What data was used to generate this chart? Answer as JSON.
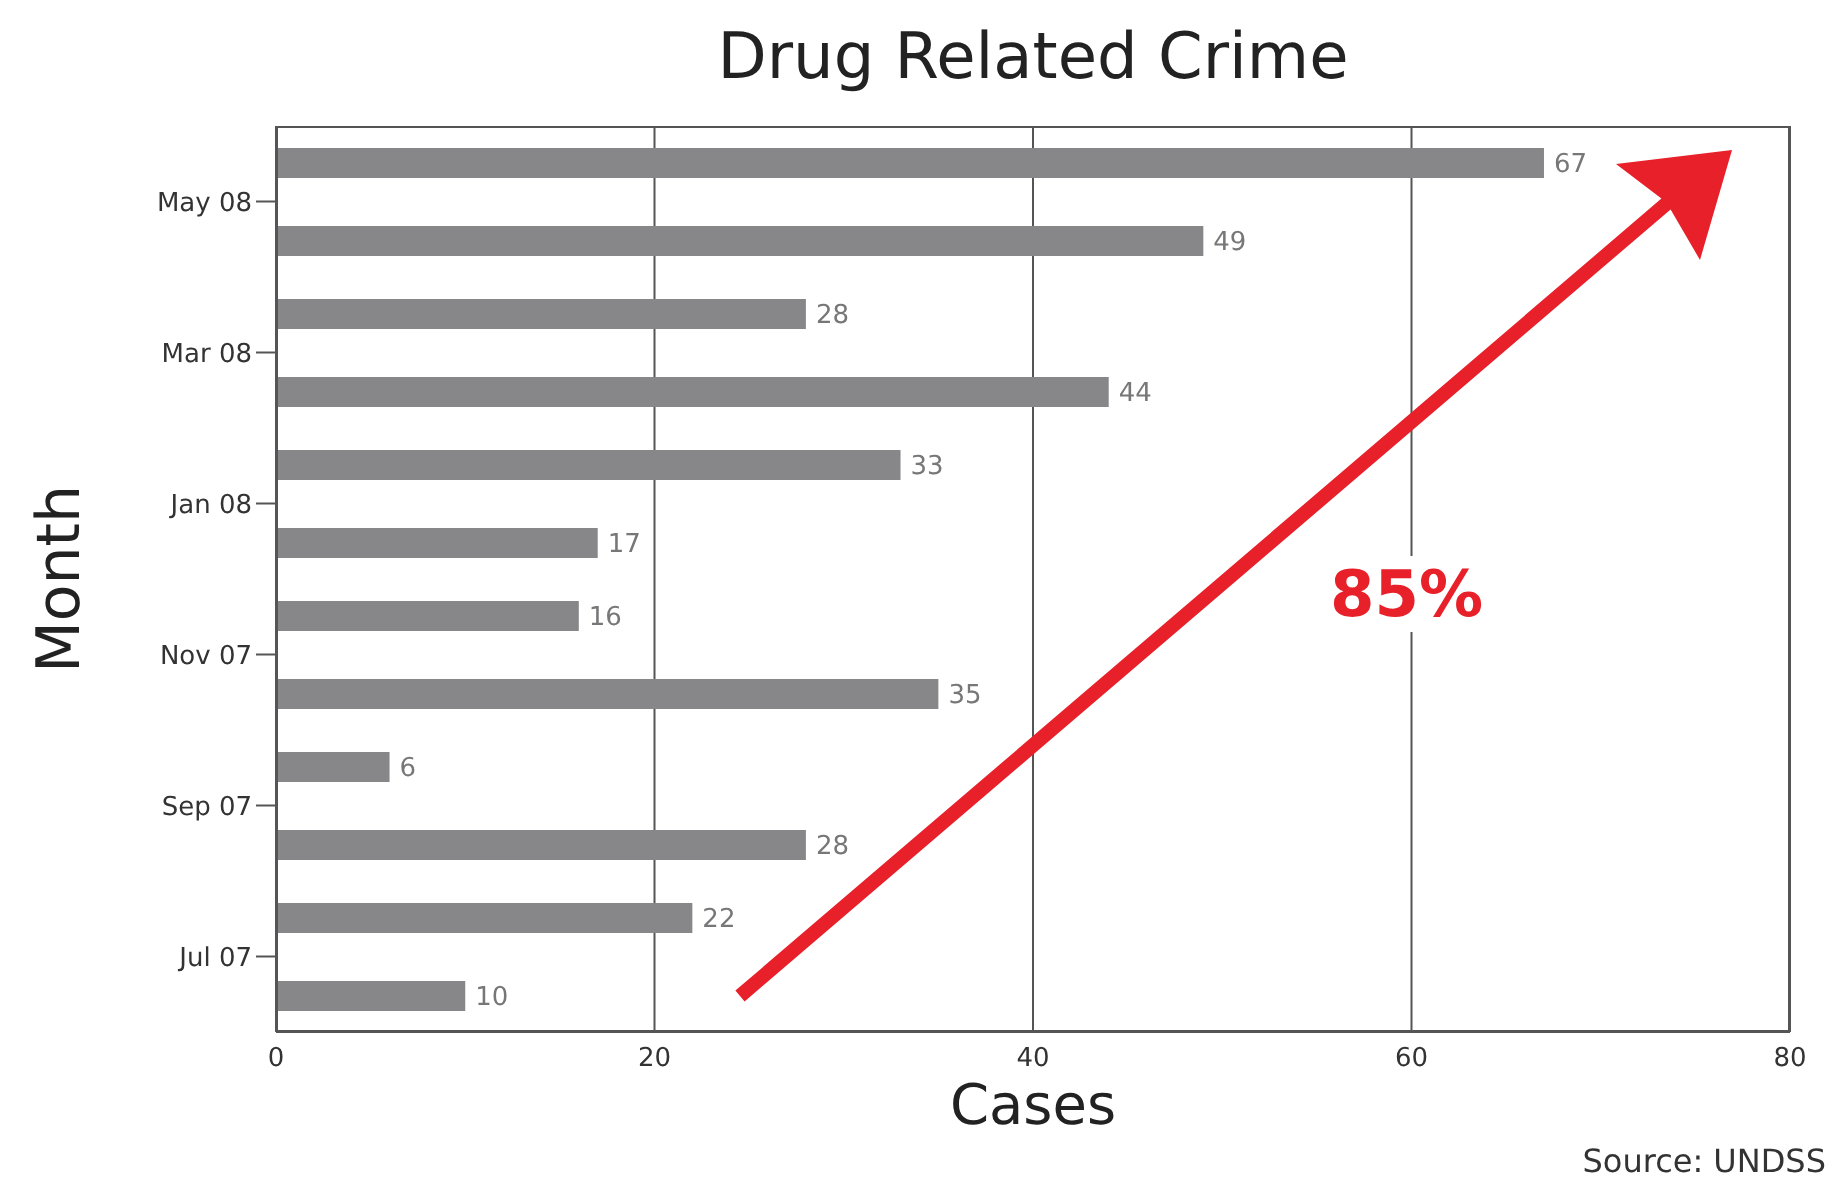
{
  "chart_data": {
    "type": "bar",
    "orientation": "horizontal",
    "title": "Drug Related Crime",
    "xlabel": "Cases",
    "ylabel": "Month",
    "categories": [
      "May 08",
      "Mar 08",
      "Jan 08",
      "Nov 07",
      "Sep 07",
      "Jul 07"
    ],
    "series": [
      {
        "color": "#87878a",
        "values": [
          67,
          28,
          33,
          16,
          6,
          22
        ]
      },
      {
        "color": "#87878a",
        "values": [
          49,
          44,
          17,
          35,
          28,
          10
        ]
      }
    ],
    "xlim": [
      0,
      80
    ],
    "xticks": [
      0,
      20,
      40,
      60,
      80
    ],
    "grid": "x",
    "data_labels": true,
    "annotations": [
      "85%",
      "Source: UNDSS"
    ]
  }
}
